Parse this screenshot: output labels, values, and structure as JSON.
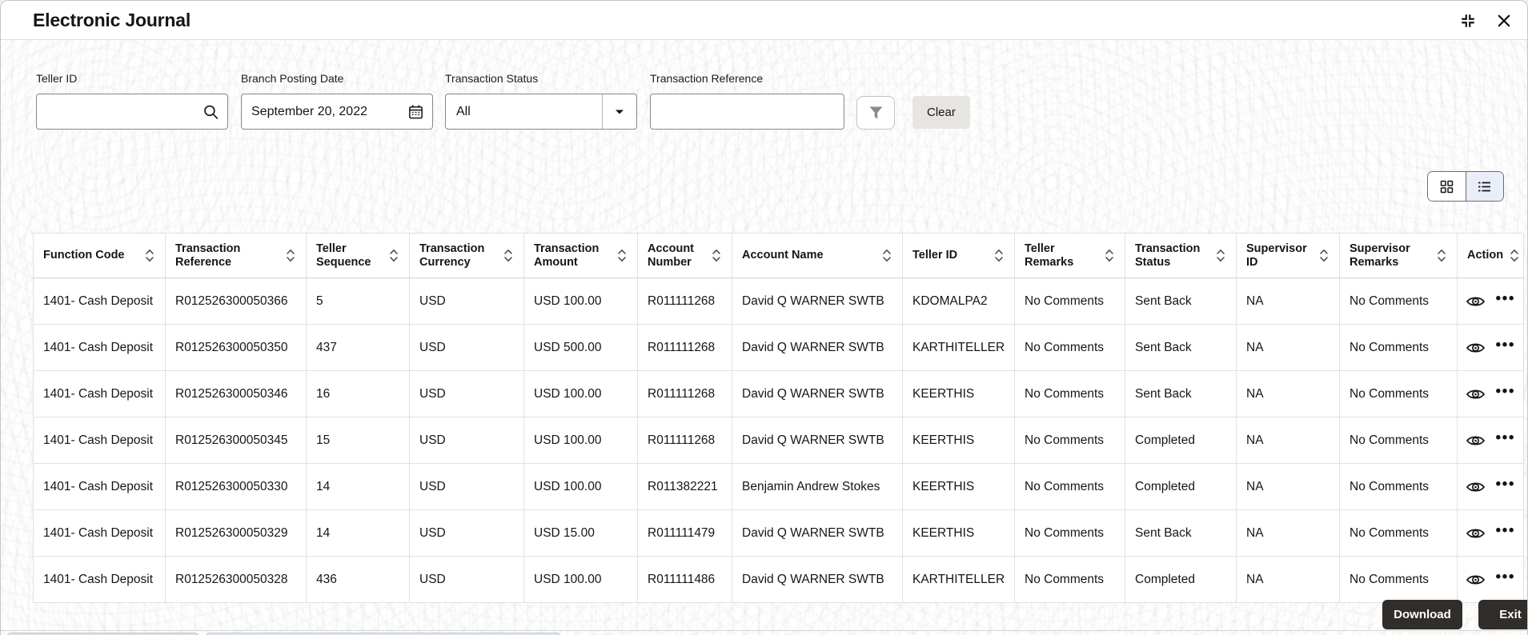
{
  "window": {
    "title": "Electronic Journal",
    "controls": [
      "collapse-icon",
      "close-icon"
    ]
  },
  "filters": {
    "teller_id": {
      "label": "Teller ID",
      "value": "",
      "icon": "search-icon"
    },
    "branch_posting_date": {
      "label": "Branch Posting Date",
      "value": "September 20, 2022",
      "icon": "calendar-icon"
    },
    "transaction_status": {
      "label": "Transaction Status",
      "value": "All",
      "icon": "chevron-down-icon"
    },
    "transaction_reference": {
      "label": "Transaction Reference",
      "value": ""
    },
    "filter_button_icon": "funnel-icon",
    "clear_label": "Clear"
  },
  "view_toggle": {
    "options": [
      {
        "name": "grid",
        "icon": "grid-view-icon",
        "selected": false
      },
      {
        "name": "list",
        "icon": "list-view-icon",
        "selected": true
      }
    ]
  },
  "table": {
    "columns": [
      "Function Code",
      "Transaction Reference",
      "Teller Sequence",
      "Transaction Currency",
      "Transaction Amount",
      "Account Number",
      "Account Name",
      "Teller ID",
      "Teller Remarks",
      "Transaction Status",
      "Supervisor ID",
      "Supervisor Remarks",
      "Action"
    ],
    "sort_icon": "sort-icon",
    "action_icons": [
      "view-eye-icon",
      "row-menu-ellipsis-icon"
    ],
    "rows": [
      [
        "1401- Cash Deposit",
        "R012526300050366",
        "5",
        "USD",
        "USD 100.00",
        "R011111268",
        "David Q WARNER SWTB",
        "KDOMALPA2",
        "No Comments",
        "Sent Back",
        "NA",
        "No Comments"
      ],
      [
        "1401- Cash Deposit",
        "R012526300050350",
        "437",
        "USD",
        "USD 500.00",
        "R011111268",
        "David Q WARNER SWTB",
        "KARTHITELLER",
        "No Comments",
        "Sent Back",
        "NA",
        "No Comments"
      ],
      [
        "1401- Cash Deposit",
        "R012526300050346",
        "16",
        "USD",
        "USD 100.00",
        "R011111268",
        "David Q WARNER SWTB",
        "KEERTHIS",
        "No Comments",
        "Sent Back",
        "NA",
        "No Comments"
      ],
      [
        "1401- Cash Deposit",
        "R012526300050345",
        "15",
        "USD",
        "USD 100.00",
        "R011111268",
        "David Q WARNER SWTB",
        "KEERTHIS",
        "No Comments",
        "Completed",
        "NA",
        "No Comments"
      ],
      [
        "1401- Cash Deposit",
        "R012526300050330",
        "14",
        "USD",
        "USD 100.00",
        "R011382221",
        "Benjamin Andrew Stokes",
        "KEERTHIS",
        "No Comments",
        "Completed",
        "NA",
        "No Comments"
      ],
      [
        "1401- Cash Deposit",
        "R012526300050329",
        "14",
        "USD",
        "USD 15.00",
        "R011111479",
        "David Q WARNER SWTB",
        "KEERTHIS",
        "No Comments",
        "Sent Back",
        "NA",
        "No Comments"
      ],
      [
        "1401- Cash Deposit",
        "R012526300050328",
        "436",
        "USD",
        "USD 100.00",
        "R011111486",
        "David Q WARNER SWTB",
        "KARTHITELLER",
        "No Comments",
        "Completed",
        "NA",
        "No Comments"
      ]
    ]
  },
  "footer": {
    "download_label": "Download",
    "exit_label": "Exit"
  },
  "colors": {
    "text": "#161513",
    "primary_button_bg": "#312d2a",
    "selected_view_bg": "#e9eef8",
    "table_border": "#e4e1dd",
    "clear_button_bg": "#e7e5e1"
  }
}
